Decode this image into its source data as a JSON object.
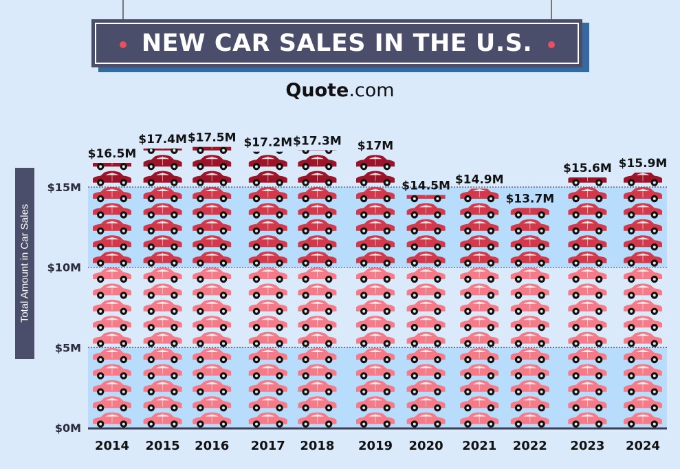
{
  "header": {
    "title": "NEW CAR SALES IN THE U.S.",
    "brand_bold": "Quote",
    "brand_rest": ".com"
  },
  "colors": {
    "background": "#dbeafb",
    "band": "#b7dcfc",
    "title_box": "#4b4e6a",
    "title_shadow": "#356aa0",
    "car_light": "#f57b89",
    "car_mid": "#d23a4c",
    "car_dark": "#9b1428"
  },
  "chart_data": {
    "type": "bar",
    "ylabel": "Total Amount in Car Sales",
    "ylim": [
      0,
      17.5
    ],
    "yticks": [
      {
        "value": 0,
        "label": "$0M"
      },
      {
        "value": 5,
        "label": "$5M"
      },
      {
        "value": 10,
        "label": "$10M"
      },
      {
        "value": 15,
        "label": "$15M"
      }
    ],
    "categories": [
      "2014",
      "2015",
      "2016",
      "2017",
      "2018",
      "2019",
      "2020",
      "2021",
      "2022",
      "2023",
      "2024"
    ],
    "values": [
      16.5,
      17.4,
      17.5,
      17.2,
      17.3,
      17.0,
      14.5,
      14.9,
      13.7,
      15.6,
      15.9
    ],
    "data_labels": [
      "$16.5M",
      "$17.4M",
      "$17.5M",
      "$17.2M",
      "$17.3M",
      "$17M",
      "$14.5M",
      "$14.9M",
      "$13.7M",
      "$15.6M",
      "$15.9M"
    ],
    "units": "million cars (stacked car icons)"
  }
}
